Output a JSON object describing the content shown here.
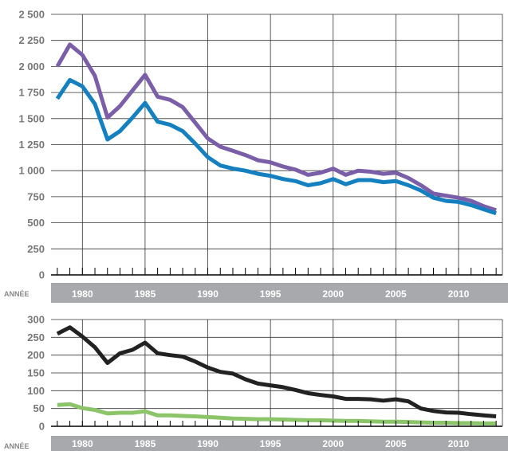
{
  "axis_word": "ANNÉE",
  "colors": {
    "purple": "#7A5FA8",
    "blue": "#1480C0",
    "black": "#222222",
    "green": "#8CC46A",
    "grid": "#333333",
    "band": "#A7A9AC"
  },
  "chart_data": [
    {
      "type": "line",
      "ylim": [
        0,
        2500
      ],
      "xlim": [
        1977.5,
        2013.5
      ],
      "grid": true,
      "y_ticks": [
        "0",
        "250",
        "500",
        "750",
        "1 000",
        "1 250",
        "1 500",
        "1 750",
        "2 000",
        "2 250",
        "2 500"
      ],
      "x_ticks": [
        "1980",
        "1985",
        "1990",
        "1995",
        "2000",
        "2005",
        "2010"
      ],
      "x": [
        1978,
        1979,
        1980,
        1981,
        1982,
        1983,
        1984,
        1985,
        1986,
        1987,
        1988,
        1989,
        1990,
        1991,
        1992,
        1993,
        1994,
        1995,
        1996,
        1997,
        1998,
        1999,
        2000,
        2001,
        2002,
        2003,
        2004,
        2005,
        2006,
        2007,
        2008,
        2009,
        2010,
        2011,
        2012,
        2013
      ],
      "series": [
        {
          "color": "#7A5FA8",
          "values": [
            2000,
            2210,
            2110,
            1910,
            1510,
            1620,
            1770,
            1920,
            1710,
            1680,
            1610,
            1460,
            1310,
            1230,
            1190,
            1150,
            1100,
            1080,
            1040,
            1010,
            960,
            980,
            1020,
            960,
            1000,
            990,
            970,
            980,
            930,
            860,
            780,
            760,
            740,
            710,
            660,
            620
          ]
        },
        {
          "color": "#1480C0",
          "values": [
            1690,
            1870,
            1810,
            1640,
            1300,
            1380,
            1510,
            1650,
            1470,
            1440,
            1380,
            1260,
            1130,
            1050,
            1020,
            1000,
            970,
            950,
            920,
            900,
            860,
            880,
            920,
            870,
            910,
            910,
            890,
            900,
            860,
            810,
            740,
            710,
            700,
            670,
            630,
            590
          ]
        }
      ]
    },
    {
      "type": "line",
      "ylim": [
        0,
        300
      ],
      "xlim": [
        1977.5,
        2013.5
      ],
      "grid": true,
      "y_ticks": [
        "0",
        "50",
        "100",
        "150",
        "200",
        "250",
        "300"
      ],
      "x_ticks": [
        "1980",
        "1985",
        "1990",
        "1995",
        "2000",
        "2005",
        "2010"
      ],
      "x": [
        1978,
        1979,
        1980,
        1981,
        1982,
        1983,
        1984,
        1985,
        1986,
        1987,
        1988,
        1989,
        1990,
        1991,
        1992,
        1993,
        1994,
        1995,
        1996,
        1997,
        1998,
        1999,
        2000,
        2001,
        2002,
        2003,
        2004,
        2005,
        2006,
        2007,
        2008,
        2009,
        2010,
        2011,
        2012,
        2013
      ],
      "series": [
        {
          "color": "#222222",
          "values": [
            260,
            278,
            252,
            222,
            178,
            205,
            215,
            235,
            205,
            200,
            196,
            182,
            165,
            153,
            148,
            132,
            120,
            115,
            110,
            102,
            93,
            88,
            84,
            77,
            77,
            76,
            72,
            76,
            70,
            50,
            43,
            39,
            38,
            34,
            31,
            28
          ]
        },
        {
          "color": "#8CC46A",
          "values": [
            60,
            62,
            51,
            46,
            36,
            38,
            38,
            42,
            31,
            31,
            29,
            28,
            26,
            24,
            22,
            21,
            20,
            20,
            19,
            18,
            17,
            17,
            16,
            15,
            15,
            14,
            13,
            13,
            12,
            11,
            10,
            10,
            9,
            9,
            8,
            8
          ]
        }
      ]
    }
  ]
}
